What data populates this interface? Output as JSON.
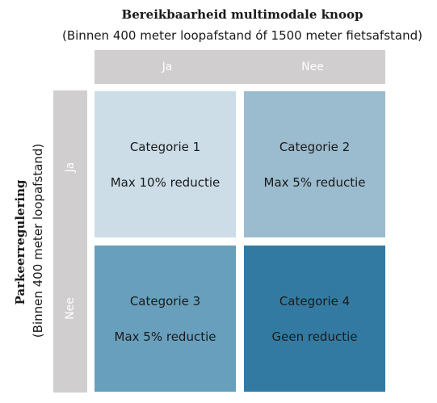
{
  "header": {
    "title": "Bereikbaarheid multimodale knoop",
    "subtitle": "(Binnen 400 meter loopafstand óf 1500 meter fietsafstand)"
  },
  "columns": [
    {
      "label": "Ja"
    },
    {
      "label": "Nee"
    }
  ],
  "side": {
    "title": "Parkeerregulering",
    "subtitle": "(Binnen 400 meter loopafstand)"
  },
  "rows": [
    {
      "label": "Ja"
    },
    {
      "label": "Nee"
    }
  ],
  "cells": [
    {
      "category": "Categorie 1",
      "reduction": "Max 10% reductie",
      "color": "#ccdde8"
    },
    {
      "category": "Categorie 2",
      "reduction": "Max 5% reductie",
      "color": "#9bbccf"
    },
    {
      "category": "Categorie 3",
      "reduction": "Max 5% reductie",
      "color": "#689fbc"
    },
    {
      "category": "Categorie 4",
      "reduction": "Geen reductie",
      "color": "#337aa2"
    }
  ]
}
